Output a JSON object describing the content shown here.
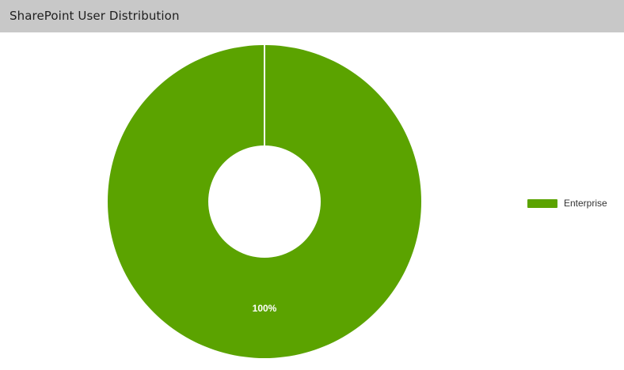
{
  "header": {
    "title": "SharePoint User Distribution"
  },
  "colors": {
    "header_bg": "#c8c8c8",
    "enterprise": "#5ba300",
    "divider": "#ffffff"
  },
  "chart_data": {
    "type": "pie",
    "variant": "donut",
    "title": "SharePoint User Distribution",
    "series": [
      {
        "name": "Enterprise",
        "values": [
          100
        ],
        "color": "#5ba300"
      }
    ],
    "categories": [
      "Enterprise"
    ],
    "values": [
      100
    ],
    "data_labels": [
      "100%"
    ],
    "legend": {
      "placement": "right",
      "items": [
        "Enterprise"
      ]
    }
  }
}
